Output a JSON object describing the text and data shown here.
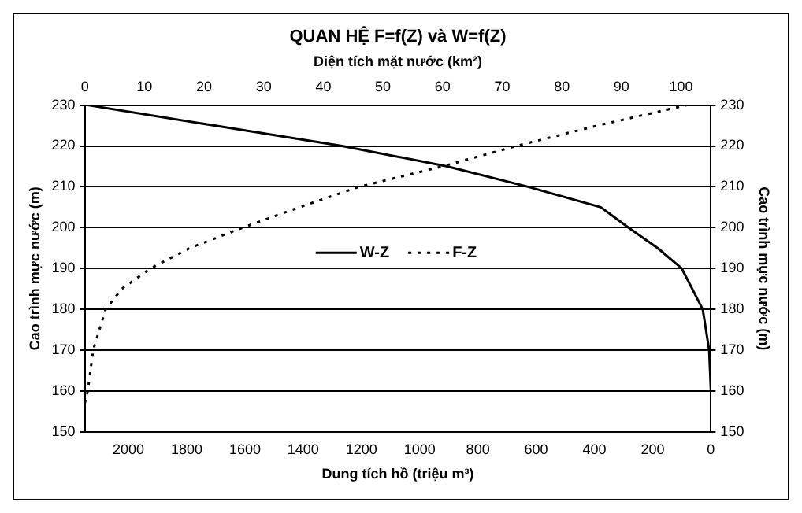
{
  "chart_data": {
    "type": "line",
    "title": "QUAN HỆ F=f(Z) và W=f(Z)",
    "xlabel": "Dung tích hồ (triệu m³)",
    "x2label": "Diện tích mặt nước (km²)",
    "ylabel": "Cao trình mực nước (m)",
    "y2label": "Cao trình mực nước (m)",
    "xlim": [
      2150,
      0
    ],
    "xticks": [
      2000,
      1800,
      1600,
      1400,
      1200,
      1000,
      800,
      600,
      400,
      200,
      0
    ],
    "x2lim": [
      0,
      105
    ],
    "x2ticks": [
      0,
      10,
      20,
      30,
      40,
      50,
      60,
      70,
      80,
      90,
      100
    ],
    "ylim": [
      150,
      230
    ],
    "yticks": [
      150,
      160,
      170,
      180,
      190,
      200,
      210,
      220,
      230
    ],
    "y2lim": [
      150,
      230
    ],
    "y2ticks": [
      150,
      160,
      170,
      180,
      190,
      200,
      210,
      220,
      230
    ],
    "grid": "y",
    "legend": "center",
    "marker": "none",
    "series": [
      {
        "name": "W-Z",
        "color": "#000000",
        "line_style": "solid",
        "x": [
          0,
          6,
          28,
          100,
          183,
          283,
          378,
          628,
          905,
          1267,
          1705,
          2140
        ],
        "values": [
          160,
          170,
          180,
          190,
          195,
          200,
          205,
          210,
          215,
          220,
          225,
          230
        ]
      },
      {
        "name": "F-Z",
        "color": "#000000",
        "line_style": "dotted",
        "axis": "x2",
        "x": [
          0,
          0.5,
          1.4,
          3.5,
          6.2,
          11,
          17.6,
          26.5,
          36,
          46,
          60,
          72.4,
          86,
          101
        ],
        "values": [
          157,
          160,
          170,
          180,
          185,
          190,
          195,
          200,
          205,
          210,
          215,
          220,
          225,
          230
        ]
      }
    ]
  }
}
